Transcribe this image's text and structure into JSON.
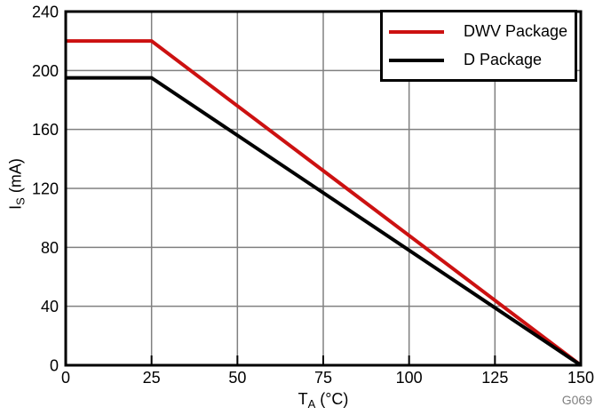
{
  "chart_data": {
    "type": "line",
    "title": "",
    "xlabel": "T_A (°C)",
    "ylabel": "I_S (mA)",
    "xlabel_parts": {
      "main": "T",
      "sub": "A",
      "unit": " (°C)"
    },
    "ylabel_parts": {
      "main": "I",
      "sub": "S",
      "unit": " (mA)"
    },
    "xlim": [
      0,
      150
    ],
    "ylim": [
      0,
      240
    ],
    "x_ticks": [
      0,
      25,
      50,
      75,
      100,
      125,
      150
    ],
    "y_ticks": [
      0,
      40,
      80,
      120,
      160,
      200,
      240
    ],
    "grid": true,
    "legend_position": "top-right",
    "series": [
      {
        "name": "DWV Package",
        "color": "#cc1111",
        "points": [
          [
            0,
            220
          ],
          [
            25,
            220
          ],
          [
            150,
            0
          ]
        ]
      },
      {
        "name": "D Package",
        "color": "#000000",
        "points": [
          [
            0,
            195
          ],
          [
            25,
            195
          ],
          [
            150,
            0
          ]
        ]
      }
    ]
  },
  "figure": {
    "watermark": "G069",
    "colors": {
      "grid": "#808080",
      "axis": "#000000",
      "tick_label": "#000000",
      "watermark": "#808080",
      "background": "#ffffff"
    }
  }
}
